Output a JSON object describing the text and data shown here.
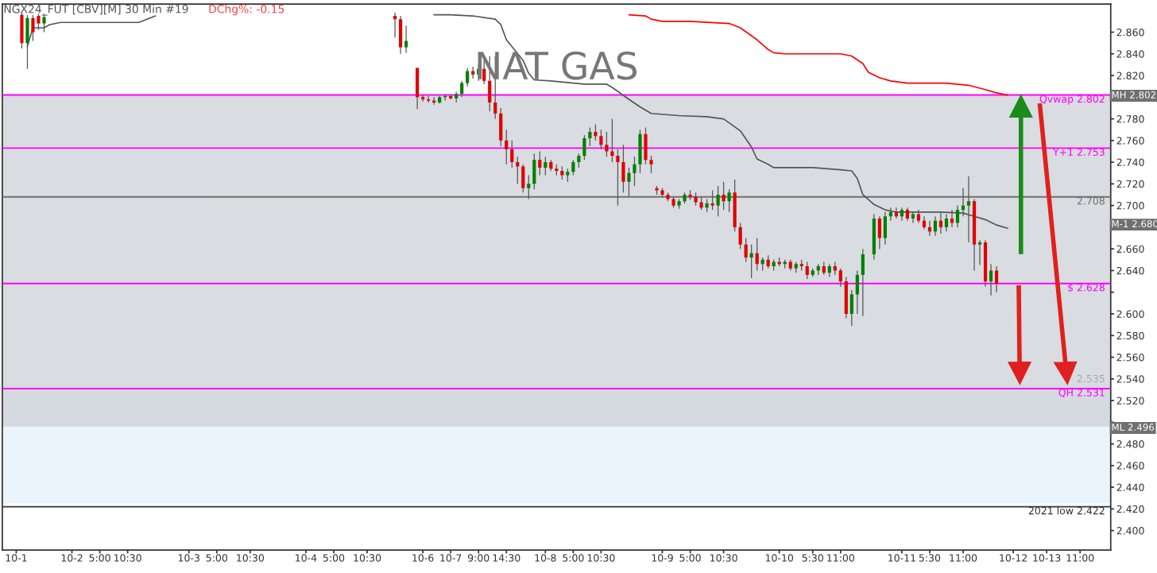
{
  "chart_data": {
    "type": "candlestick",
    "title": "NAT GAS",
    "subtitle": "NGX24_FUT [CBV][M] 30 Min #19",
    "annotations": [
      "DChg%: -0.15",
      "MH 2.802",
      "M-1 2.680",
      "ML 2.496"
    ],
    "categories": [
      null,
      null,
      "10-1",
      null,
      null,
      null,
      null,
      null,
      null,
      null,
      null,
      null,
      "10-2",
      null,
      null,
      null,
      null,
      "5:00",
      null,
      null,
      null,
      null,
      "10:30",
      null,
      null,
      null,
      null,
      null,
      null,
      null,
      null,
      null,
      null,
      "10-3",
      null,
      null,
      null,
      null,
      "5:00",
      null,
      null,
      null,
      null,
      null,
      "10:30",
      null,
      null,
      null,
      null,
      null,
      null,
      null,
      null,
      null,
      "10-4",
      null,
      null,
      null,
      null,
      "5:00",
      null,
      null,
      null,
      null,
      null,
      "10:30",
      null,
      null,
      null,
      null,
      null,
      null,
      null,
      null,
      null,
      "10-6",
      null,
      null,
      null,
      null,
      "10-7",
      null,
      null,
      null,
      null,
      "9:00",
      null,
      null,
      null,
      null,
      "14:30",
      null,
      null,
      null,
      null,
      null,
      null,
      "10-8",
      null,
      null,
      null,
      null,
      "5:00",
      null,
      null,
      null,
      null,
      "10:30",
      null,
      null,
      null,
      null,
      null,
      null,
      null,
      null,
      null,
      null,
      "10-9",
      null,
      null,
      null,
      null,
      "5:00",
      null,
      null,
      null,
      null,
      null,
      "10:30",
      null,
      null,
      null,
      null,
      null,
      null,
      null,
      null,
      null,
      "10-10",
      null,
      null,
      null,
      null,
      null,
      "5:30",
      null,
      null,
      null,
      null,
      "11:00",
      null,
      null,
      null,
      null,
      null,
      null,
      null,
      null,
      null,
      null,
      "10-11",
      null,
      null,
      null,
      null,
      "5:30",
      null,
      null,
      null,
      null,
      null,
      "11:00",
      null,
      null,
      null,
      null,
      null,
      null,
      null,
      null,
      "10-12",
      null,
      null,
      null,
      null,
      null,
      "10-13",
      null,
      null,
      null,
      null,
      null,
      "11:00",
      null,
      null,
      null,
      null,
      null
    ],
    "ohlc": [
      null,
      null,
      null,
      [
        2.876,
        2.878,
        2.845,
        2.85
      ],
      [
        2.85,
        2.876,
        2.826,
        2.873
      ],
      [
        2.873,
        2.876,
        2.852,
        2.86
      ],
      [
        2.875,
        2.877,
        2.862,
        2.868
      ],
      [
        2.868,
        2.877,
        2.86,
        2.874
      ],
      null,
      null,
      null,
      null,
      null,
      null,
      null,
      null,
      null,
      null,
      null,
      null,
      null,
      null,
      null,
      null,
      null,
      null,
      null,
      null,
      null,
      null,
      null,
      null,
      null,
      null,
      null,
      null,
      null,
      null,
      null,
      null,
      null,
      null,
      null,
      null,
      null,
      null,
      null,
      null,
      null,
      null,
      null,
      null,
      null,
      null,
      null,
      null,
      null,
      null,
      null,
      null,
      null,
      null,
      null,
      null,
      null,
      null,
      null,
      null,
      null,
      null,
      [
        2.875,
        2.878,
        2.855,
        2.872
      ],
      [
        2.872,
        2.875,
        2.84,
        2.846
      ],
      [
        2.846,
        2.866,
        2.841,
        2.852
      ],
      null,
      [
        2.827,
        2.827,
        2.789,
        2.8
      ],
      [
        2.8,
        2.802,
        2.796,
        2.798
      ],
      [
        2.798,
        2.801,
        2.795,
        2.797
      ],
      [
        2.797,
        2.8,
        2.793,
        2.795
      ],
      [
        2.795,
        2.801,
        2.794,
        2.8
      ],
      [
        2.8,
        2.803,
        2.797,
        2.801
      ],
      [
        2.801,
        2.802,
        2.798,
        2.799
      ],
      [
        2.799,
        2.805,
        2.795,
        2.803
      ],
      [
        2.803,
        2.815,
        2.8,
        2.813
      ],
      [
        2.813,
        2.827,
        2.81,
        2.824
      ],
      [
        2.824,
        2.828,
        2.817,
        2.821
      ],
      [
        2.821,
        2.83,
        2.815,
        2.826
      ],
      [
        2.826,
        2.835,
        2.812,
        2.815
      ],
      [
        2.815,
        2.838,
        2.787,
        2.795
      ],
      [
        2.795,
        2.838,
        2.78,
        2.785
      ],
      [
        2.785,
        2.79,
        2.755,
        2.76
      ],
      [
        2.76,
        2.77,
        2.738,
        2.752
      ],
      [
        2.752,
        2.76,
        2.735,
        2.74
      ],
      [
        2.74,
        2.745,
        2.72,
        2.736
      ],
      [
        2.736,
        2.738,
        2.712,
        2.716
      ],
      [
        2.716,
        2.728,
        2.706,
        2.72
      ],
      [
        2.72,
        2.748,
        2.715,
        2.742
      ],
      [
        2.742,
        2.75,
        2.728,
        2.735
      ],
      [
        2.735,
        2.745,
        2.728,
        2.74
      ],
      [
        2.74,
        2.742,
        2.732,
        2.734
      ],
      [
        2.734,
        2.738,
        2.728,
        2.732
      ],
      [
        2.732,
        2.736,
        2.724,
        2.728
      ],
      [
        2.728,
        2.734,
        2.722,
        2.731
      ],
      [
        2.731,
        2.742,
        2.728,
        2.74
      ],
      [
        2.74,
        2.748,
        2.735,
        2.746
      ],
      [
        2.746,
        2.765,
        2.742,
        2.762
      ],
      [
        2.762,
        2.772,
        2.755,
        2.768
      ],
      [
        2.768,
        2.775,
        2.76,
        2.764
      ],
      [
        2.764,
        2.77,
        2.752,
        2.756
      ],
      [
        2.756,
        2.768,
        2.745,
        2.75
      ],
      [
        2.75,
        2.78,
        2.74,
        2.746
      ],
      [
        2.746,
        2.752,
        2.7,
        2.74
      ],
      [
        2.74,
        2.756,
        2.712,
        2.722
      ],
      [
        2.722,
        2.735,
        2.708,
        2.73
      ],
      [
        2.73,
        2.745,
        2.718,
        2.738
      ],
      [
        2.738,
        2.77,
        2.73,
        2.766
      ],
      [
        2.766,
        2.772,
        2.738,
        2.742
      ],
      [
        2.742,
        2.746,
        2.73,
        2.738
      ],
      [
        2.716,
        2.718,
        2.71,
        2.714
      ],
      [
        2.714,
        2.716,
        2.708,
        2.71
      ],
      [
        2.71,
        2.712,
        2.704,
        2.706
      ],
      [
        2.706,
        2.708,
        2.698,
        2.7
      ],
      [
        2.7,
        2.706,
        2.697,
        2.704
      ],
      [
        2.704,
        2.712,
        2.702,
        2.71
      ],
      [
        2.71,
        2.714,
        2.705,
        2.708
      ],
      [
        2.708,
        2.712,
        2.7,
        2.703
      ],
      [
        2.703,
        2.708,
        2.696,
        2.698
      ],
      [
        2.698,
        2.706,
        2.694,
        2.702
      ],
      [
        2.702,
        2.714,
        2.696,
        2.7
      ],
      [
        2.7,
        2.718,
        2.69,
        2.71
      ],
      [
        2.71,
        2.722,
        2.696,
        2.704
      ],
      [
        2.704,
        2.715,
        2.694,
        2.712
      ],
      [
        2.712,
        2.724,
        2.676,
        2.68
      ],
      [
        2.68,
        2.684,
        2.66,
        2.664
      ],
      [
        2.664,
        2.67,
        2.648,
        2.652
      ],
      [
        2.652,
        2.664,
        2.633,
        2.656
      ],
      [
        2.656,
        2.67,
        2.64,
        2.646
      ],
      [
        2.646,
        2.652,
        2.64,
        2.65
      ],
      [
        2.65,
        2.654,
        2.642,
        2.644
      ],
      [
        2.644,
        2.65,
        2.64,
        2.648
      ],
      [
        2.648,
        2.652,
        2.644,
        2.646
      ],
      [
        2.646,
        2.65,
        2.642,
        2.648
      ],
      [
        2.648,
        2.65,
        2.64,
        2.642
      ],
      [
        2.642,
        2.648,
        2.638,
        2.646
      ],
      [
        2.646,
        2.65,
        2.64,
        2.644
      ],
      [
        2.644,
        2.648,
        2.632,
        2.636
      ],
      [
        2.636,
        2.642,
        2.634,
        2.64
      ],
      [
        2.64,
        2.646,
        2.636,
        2.644
      ],
      [
        2.644,
        2.648,
        2.636,
        2.638
      ],
      [
        2.638,
        2.646,
        2.634,
        2.644
      ],
      [
        2.644,
        2.648,
        2.636,
        2.64
      ],
      [
        2.64,
        2.642,
        2.625,
        2.63
      ],
      [
        2.63,
        2.634,
        2.596,
        2.6
      ],
      [
        2.6,
        2.622,
        2.589,
        2.618
      ],
      [
        2.618,
        2.64,
        2.6,
        2.636
      ],
      [
        2.636,
        2.66,
        2.598,
        2.655
      ],
      null,
      [
        2.655,
        2.692,
        2.65,
        2.688
      ],
      [
        2.688,
        2.69,
        2.66,
        2.67
      ],
      [
        2.67,
        2.694,
        2.664,
        2.69
      ],
      [
        2.69,
        2.698,
        2.686,
        2.694
      ],
      [
        2.694,
        2.698,
        2.688,
        2.69
      ],
      [
        2.69,
        2.698,
        2.686,
        2.696
      ],
      [
        2.696,
        2.698,
        2.686,
        2.688
      ],
      [
        2.688,
        2.694,
        2.684,
        2.692
      ],
      [
        2.692,
        2.696,
        2.684,
        2.686
      ],
      [
        2.686,
        2.69,
        2.678,
        2.68
      ],
      [
        2.68,
        2.686,
        2.672,
        2.676
      ],
      [
        2.676,
        2.69,
        2.672,
        2.686
      ],
      [
        2.686,
        2.694,
        2.674,
        2.68
      ],
      [
        2.68,
        2.692,
        2.676,
        2.688
      ],
      [
        2.688,
        2.696,
        2.68,
        2.684
      ],
      [
        2.684,
        2.7,
        2.68,
        2.696
      ],
      [
        2.696,
        2.716,
        2.69,
        2.7
      ],
      [
        2.7,
        2.727,
        2.666,
        2.704
      ],
      [
        2.704,
        2.706,
        2.64,
        2.664
      ],
      [
        2.664,
        2.668,
        2.645,
        2.666
      ],
      [
        2.666,
        2.668,
        2.625,
        2.63
      ],
      [
        2.63,
        2.646,
        2.617,
        2.64
      ],
      [
        2.64,
        2.644,
        2.62,
        2.628
      ],
      null,
      null,
      null,
      null,
      null,
      null,
      null,
      null,
      null,
      null,
      null,
      null,
      null,
      null,
      null,
      null,
      null,
      null,
      null,
      null
    ],
    "series": [
      {
        "type": "line",
        "color": "#555555",
        "values": [
          null,
          null,
          null,
          null,
          2.847,
          2.864,
          null,
          2.864,
          2.867,
          null,
          2.869,
          null,
          null,
          null,
          null,
          null,
          null,
          null,
          null,
          null,
          null,
          2.869,
          null,
          null,
          2.869,
          2.871,
          null,
          2.875,
          null,
          null,
          null,
          null,
          null,
          null,
          null,
          null,
          null,
          null,
          null,
          null,
          null,
          null,
          null,
          null,
          null,
          null,
          null,
          null,
          null,
          null,
          null,
          null,
          null,
          null,
          null,
          null,
          null,
          null,
          null,
          null,
          null,
          null,
          null,
          null,
          null,
          null,
          null,
          null,
          null,
          null,
          null,
          null,
          null,
          null,
          null,
          null,
          null,
          null,
          null,
          null,
          null,
          null,
          null,
          null,
          null,
          null,
          null,
          null,
          null,
          null,
          null,
          null,
          null,
          null,
          null,
          null,
          null,
          null,
          null,
          null,
          null,
          null,
          null,
          null,
          null,
          null,
          null,
          null,
          null,
          null,
          null,
          null,
          null,
          null,
          null,
          null,
          null,
          null,
          null,
          null,
          null,
          null,
          null,
          null,
          null,
          null,
          null,
          null,
          null,
          null,
          null,
          null,
          null,
          null,
          null,
          null,
          null,
          null,
          null,
          null,
          null,
          null,
          null,
          null,
          null,
          null,
          null,
          null,
          null,
          null,
          null,
          null,
          null,
          null,
          null,
          null,
          null,
          null,
          null,
          null,
          null,
          null,
          null,
          null,
          null,
          null,
          null,
          null,
          null,
          null,
          null,
          null,
          null,
          null,
          null,
          null,
          null,
          null,
          null,
          null,
          null,
          null,
          null,
          null,
          null,
          null,
          null,
          null,
          null,
          null,
          null,
          null,
          null,
          null,
          null,
          null,
          null,
          null,
          null
        ]
      },
      {
        "type": "line",
        "color": "#555555",
        "values": [
          null,
          null,
          null,
          null,
          null,
          null,
          null,
          null,
          null,
          null,
          null,
          null,
          null,
          null,
          null,
          null,
          null,
          null,
          null,
          null,
          null,
          null,
          null,
          null,
          null,
          null,
          null,
          null,
          null,
          null,
          null,
          null,
          null,
          null,
          null,
          null,
          null,
          null,
          null,
          null,
          null,
          null,
          null,
          null,
          null,
          null,
          null,
          null,
          null,
          null,
          null,
          null,
          null,
          null,
          null,
          null,
          null,
          null,
          null,
          null,
          null,
          null,
          null,
          null,
          null,
          null,
          null,
          null,
          null,
          null,
          null,
          null,
          null,
          null,
          null,
          null,
          null,
          2.876,
          null,
          null,
          2.876,
          null,
          null,
          null,
          2.875,
          null,
          null,
          null,
          2.872,
          2.867,
          2.853,
          null,
          null,
          2.834,
          2.822,
          2.816,
          null,
          null,
          2.815,
          null,
          null,
          null,
          null,
          null,
          2.812,
          null,
          null,
          null,
          2.812,
          2.809,
          null,
          null,
          2.798,
          null,
          2.791,
          null,
          2.785,
          null,
          null,
          null,
          null,
          2.783,
          null,
          null,
          null,
          null,
          2.782,
          null,
          null,
          2.78,
          null,
          null,
          2.769,
          null,
          2.754,
          2.743,
          null,
          2.738,
          2.735,
          null,
          null,
          null,
          null,
          null,
          null,
          2.735,
          null,
          null,
          null,
          null,
          2.733,
          null,
          2.732,
          2.725,
          2.71,
          null,
          2.701,
          null,
          2.696,
          null,
          2.694,
          null,
          null,
          null,
          null,
          null,
          null,
          null,
          2.694,
          null,
          null,
          null,
          2.693,
          null,
          2.69,
          null,
          2.687,
          null,
          2.682,
          null,
          2.679,
          null,
          null,
          null,
          null,
          null,
          null,
          null,
          null,
          null,
          null,
          null,
          null,
          null,
          null,
          null,
          null,
          null,
          null
        ]
      },
      {
        "type": "line",
        "color": "#ff0000",
        "values": [
          null,
          null,
          null,
          null,
          null,
          null,
          null,
          null,
          null,
          null,
          null,
          null,
          null,
          null,
          null,
          null,
          null,
          null,
          null,
          null,
          null,
          null,
          null,
          null,
          null,
          null,
          null,
          null,
          null,
          null,
          null,
          null,
          null,
          null,
          null,
          null,
          null,
          null,
          null,
          null,
          null,
          null,
          null,
          null,
          null,
          null,
          null,
          null,
          null,
          null,
          null,
          null,
          null,
          null,
          null,
          null,
          null,
          null,
          null,
          null,
          null,
          null,
          null,
          null,
          null,
          null,
          null,
          null,
          null,
          null,
          null,
          null,
          null,
          null,
          null,
          null,
          null,
          null,
          null,
          null,
          null,
          null,
          null,
          null,
          null,
          null,
          null,
          null,
          null,
          null,
          null,
          null,
          null,
          null,
          null,
          null,
          null,
          null,
          null,
          null,
          null,
          null,
          null,
          null,
          null,
          null,
          null,
          null,
          null,
          null,
          null,
          null,
          2.876,
          null,
          null,
          2.875,
          2.872,
          null,
          2.87,
          null,
          null,
          null,
          null,
          2.87,
          null,
          null,
          null,
          null,
          null,
          null,
          2.868,
          null,
          2.864,
          null,
          null,
          2.853,
          null,
          2.844,
          2.841,
          null,
          2.84,
          null,
          null,
          null,
          null,
          null,
          null,
          2.84,
          null,
          null,
          2.84,
          null,
          2.838,
          null,
          2.831,
          2.823,
          null,
          2.818,
          null,
          2.815,
          null,
          null,
          2.813,
          null,
          null,
          null,
          null,
          null,
          null,
          2.813,
          null,
          null,
          null,
          2.811,
          null,
          null,
          2.807,
          null,
          2.804,
          null,
          2.802,
          null,
          null,
          null,
          null,
          null,
          null,
          null,
          null,
          null,
          null,
          null,
          null,
          null,
          null,
          null,
          null,
          null,
          null
        ]
      }
    ],
    "ref_lines": [
      {
        "axis": "y",
        "value": 2.802,
        "label": "Qvwap 2.802",
        "color": "#ff00ff"
      },
      {
        "axis": "y",
        "value": 2.753,
        "label": "Y+1 2.753",
        "color": "#ff00ff"
      },
      {
        "axis": "y",
        "value": 2.708,
        "label": "2.708",
        "color": "#707070"
      },
      {
        "axis": "y",
        "value": 2.628,
        "label": "$ 2.628",
        "color": "#ff00ff"
      },
      {
        "axis": "y",
        "value": 2.531,
        "label": "QH 2.531",
        "color": "#ff00ff"
      },
      {
        "axis": "y",
        "value": 2.422,
        "label": "2021 low 2.422",
        "color": "#333333"
      }
    ],
    "bands": [
      {
        "axis": "y",
        "from": 2.425,
        "to": 2.535,
        "label": "2.535",
        "color": "#e3f1fd"
      },
      {
        "axis": "y",
        "from": 2.496,
        "to": 2.802,
        "color": "#cfd3d8"
      }
    ],
    "ylim": [
      2.382,
      2.886
    ],
    "yticks": [
      {
        "value": 2.4,
        "label": "2.400"
      },
      {
        "value": 2.42,
        "label": "2.420"
      },
      {
        "value": 2.44,
        "label": "2.440"
      },
      {
        "value": 2.46,
        "label": "2.460"
      },
      {
        "value": 2.48,
        "label": "2.480"
      },
      {
        "value": 2.5,
        "label": null
      },
      {
        "value": 2.52,
        "label": "2.520"
      },
      {
        "value": 2.54,
        "label": "2.540"
      },
      {
        "value": 2.56,
        "label": "2.560"
      },
      {
        "value": 2.58,
        "label": "2.580"
      },
      {
        "value": 2.6,
        "label": "2.600"
      },
      {
        "value": 2.62,
        "label": null
      },
      {
        "value": 2.64,
        "label": "2.640"
      },
      {
        "value": 2.66,
        "label": "2.660"
      },
      {
        "value": 2.68,
        "label": null
      },
      {
        "value": 2.7,
        "label": "2.700"
      },
      {
        "value": 2.72,
        "label": "2.720"
      },
      {
        "value": 2.74,
        "label": "2.740"
      },
      {
        "value": 2.76,
        "label": "2.760"
      },
      {
        "value": 2.78,
        "label": "2.780"
      },
      {
        "value": 2.8,
        "label": null
      },
      {
        "value": 2.82,
        "label": "2.820"
      },
      {
        "value": 2.84,
        "label": "2.840"
      },
      {
        "value": 2.86,
        "label": "2.860"
      }
    ],
    "grid": false,
    "legend": false
  }
}
